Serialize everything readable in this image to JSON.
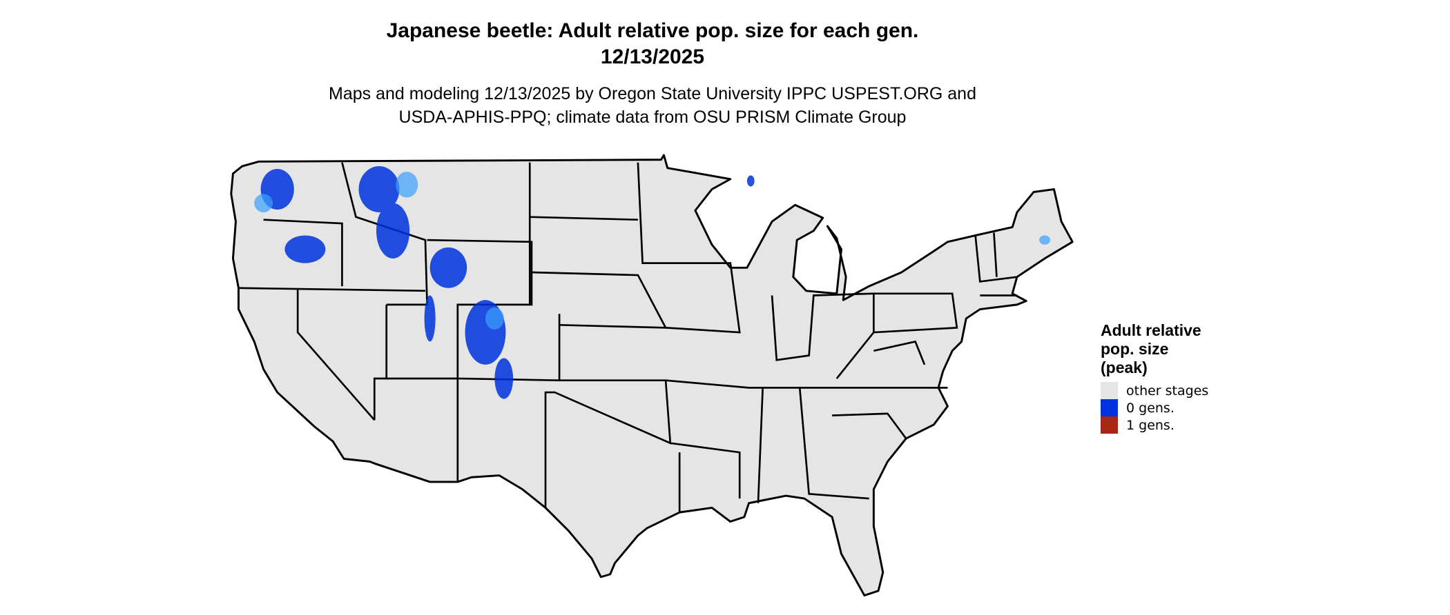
{
  "title": {
    "line1": "Japanese beetle: Adult relative pop. size for each gen.",
    "line2": "12/13/2025"
  },
  "subtitle": {
    "line1": "Maps and modeling 12/13/2025 by Oregon State University IPPC USPEST.ORG and",
    "line2": "USDA-APHIS-PPQ; climate data from OSU PRISM Climate Group"
  },
  "map": {
    "region": "contiguous United States",
    "base_color": "#e5e5e5",
    "border_color": "#000000"
  },
  "legend": {
    "title_lines": [
      "Adult relative",
      "pop. size",
      "(peak)"
    ],
    "items": [
      {
        "label": "other stages",
        "color": "#e5e5e5"
      },
      {
        "label": "0 gens.",
        "color": "#0033dd"
      },
      {
        "label": "1 gens.",
        "color": "#a82614"
      }
    ]
  }
}
